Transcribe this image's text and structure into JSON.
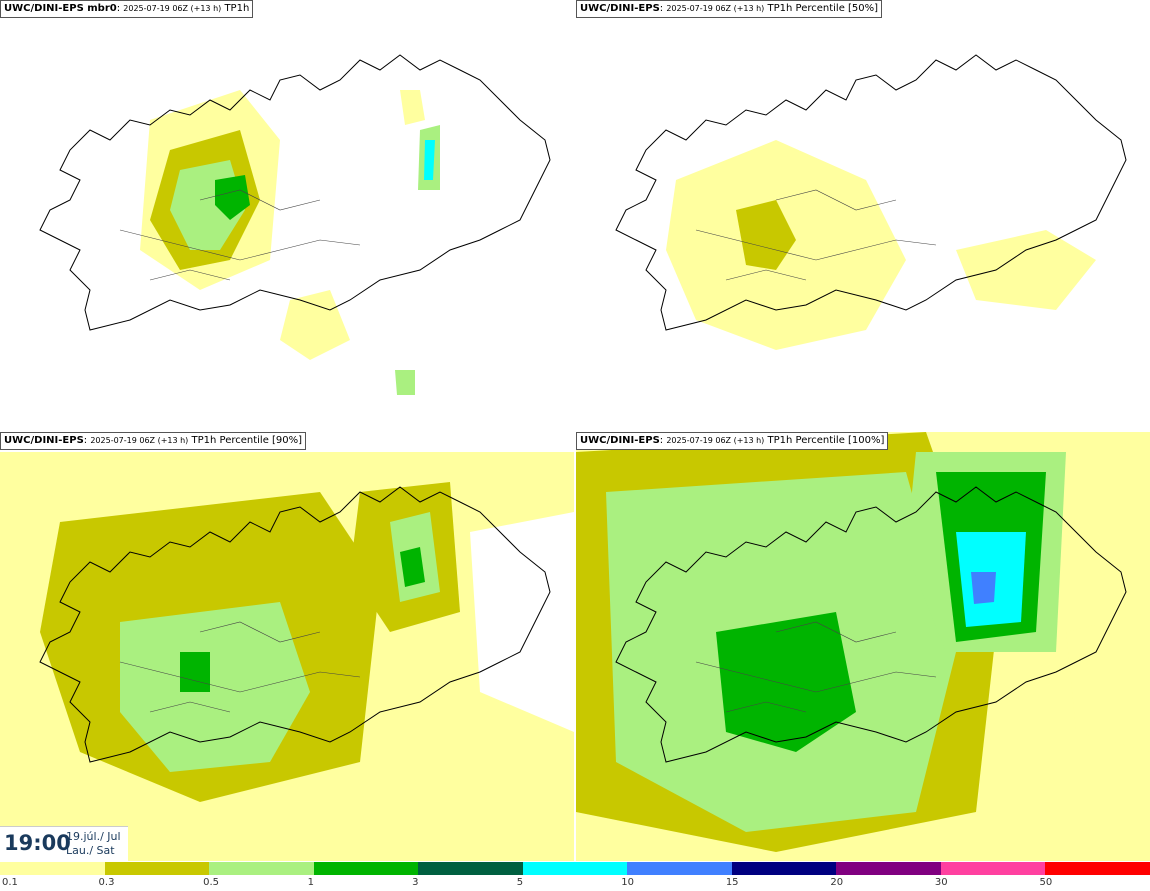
{
  "panels": [
    {
      "src": "UWC/DINI-EPS mbr0",
      "run": "2025-07-19 06Z (+13 h)",
      "field": "TP1h"
    },
    {
      "src": "UWC/DINI-EPS",
      "run": "2025-07-19 06Z (+13 h)",
      "field": "TP1h Percentile [50%]"
    },
    {
      "src": "UWC/DINI-EPS",
      "run": "2025-07-19 06Z (+13 h)",
      "field": "TP1h Percentile [90%]"
    },
    {
      "src": "UWC/DINI-EPS",
      "run": "2025-07-19 06Z (+13 h)",
      "field": "TP1h Percentile [100%]"
    }
  ],
  "valid_time": {
    "time": "19:00",
    "date_line1": "19.júl./ Jul",
    "date_line2": "Lau./ Sat"
  },
  "legend": {
    "ticks": [
      "0.1",
      "0.3",
      "0.5",
      "1",
      "3",
      "5",
      "10",
      "15",
      "20",
      "30",
      "50"
    ],
    "colors": [
      "#ffff9f",
      "#c8c800",
      "#aaf080",
      "#00b400",
      "#006040",
      "#00ffff",
      "#4080ff",
      "#000080",
      "#800080",
      "#ff40a0",
      "#ff0000"
    ]
  }
}
